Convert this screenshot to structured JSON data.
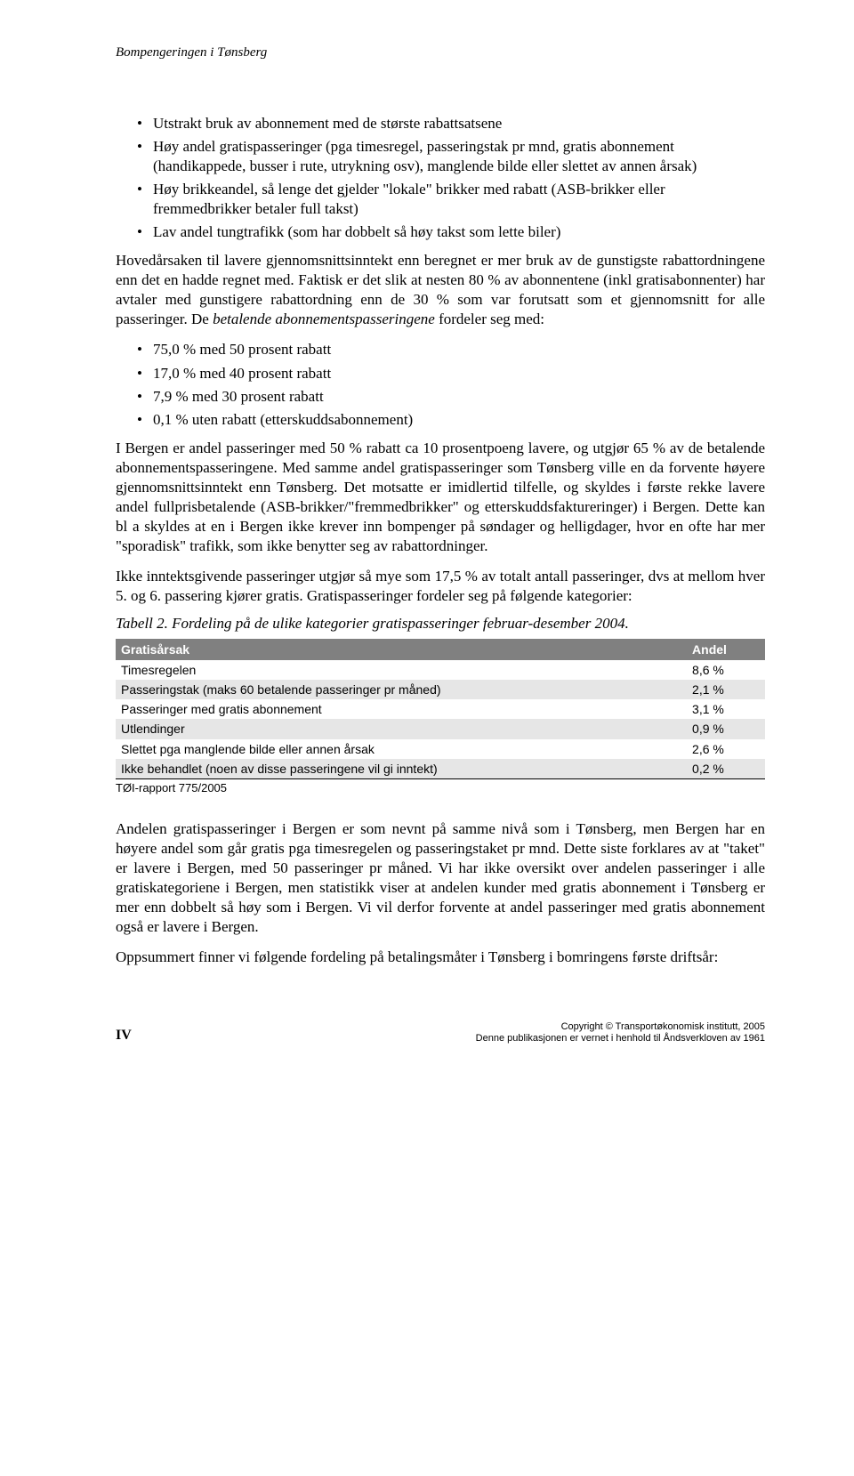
{
  "header": {
    "title": "Bompengeringen i Tønsberg"
  },
  "bullets1": {
    "items": [
      "Utstrakt bruk av abonnement med de største rabattsatsene",
      "Høy andel gratispasseringer (pga timesregel, passeringstak pr mnd, gratis abonnement (handikappede, busser i rute, utrykning osv), manglende bilde eller slettet av annen årsak)",
      "Høy brikkeandel, så lenge det gjelder \"lokale\" brikker med rabatt (ASB-brikker eller fremmedbrikker betaler full takst)",
      "Lav andel tungtrafikk (som har dobbelt så høy takst som lette biler)"
    ]
  },
  "paragraphs": {
    "p1": "Hovedårsaken til lavere gjennomsnittsinntekt enn beregnet er mer bruk av de gunstigste rabattordningene enn det en hadde regnet med. Faktisk er det slik at nesten 80 % av abonnentene (inkl gratisabonnenter) har avtaler med gunstigere rabattordning enn de 30 % som var forutsatt som et gjennomsnitt for alle passeringer. De betalende abonnementspasseringene fordeler seg med:",
    "p2": "I Bergen er andel passeringer med 50 % rabatt ca 10 prosentpoeng lavere, og utgjør 65 % av de betalende abonnementspasseringene. Med samme andel gratispasseringer som Tønsberg ville en da forvente høyere gjennomsnittsinntekt enn Tønsberg. Det motsatte er imidlertid tilfelle, og skyldes i første rekke lavere andel fullprisbetalende (ASB-brikker/\"fremmedbrikker\" og etterskuddsfaktureringer) i Bergen. Dette kan bl a skyldes at en i Bergen ikke krever inn bompenger på søndager og helligdager, hvor en ofte har mer \"sporadisk\" trafikk, som ikke benytter seg av rabattordninger.",
    "p3": "Ikke inntektsgivende passeringer utgjør så mye som 17,5 % av totalt antall passeringer, dvs at mellom hver 5. og 6. passering kjører gratis. Gratispasseringer fordeler seg på følgende kategorier:",
    "p4": "Andelen gratispasseringer i Bergen er som nevnt på samme nivå som i Tønsberg, men Bergen har en høyere andel som går gratis pga timesregelen og passeringstaket pr mnd. Dette siste forklares av at \"taket\" er lavere i Bergen, med 50 passeringer pr måned. Vi har ikke oversikt over andelen passeringer i alle gratiskategoriene i Bergen, men statistikk viser at andelen kunder med gratis abonnement i Tønsberg er mer enn dobbelt så høy som i Bergen. Vi vil derfor forvente at andel passeringer med gratis abonnement også er lavere i Bergen.",
    "p5": "Oppsummert finner vi følgende fordeling på betalingsmåter i Tønsberg i bomringens første driftsår:"
  },
  "bullets2": {
    "items": [
      "75,0 % med 50 prosent rabatt",
      "17,0 % med 40 prosent rabatt",
      "7,9 % med 30 prosent rabatt",
      "0,1 % uten rabatt (etterskuddsabonnement)"
    ]
  },
  "table": {
    "caption": "Tabell 2. Fordeling på de ulike kategorier gratispasseringer februar-desember 2004.",
    "columns": [
      "Gratisårsak",
      "Andel"
    ],
    "rows": [
      {
        "label": "Timesregelen",
        "value": "8,6 %",
        "shade": false
      },
      {
        "label": "Passeringstak (maks 60 betalende passeringer pr måned)",
        "value": "2,1 %",
        "shade": true
      },
      {
        "label": "Passeringer med gratis abonnement",
        "value": "3,1 %",
        "shade": false
      },
      {
        "label": "Utlendinger",
        "value": "0,9 %",
        "shade": true
      },
      {
        "label": "Slettet pga manglende bilde eller annen årsak",
        "value": "2,6 %",
        "shade": false
      },
      {
        "label": "Ikke behandlet (noen av disse passeringene vil gi inntekt)",
        "value": "0,2 %",
        "shade": true
      }
    ],
    "source": "TØI-rapport 775/2005"
  },
  "footer": {
    "page": "IV",
    "copyright": "Copyright © Transportøkonomisk institutt, 2005",
    "notice": "Denne publikasjonen er vernet i henhold til Åndsverkloven av 1961"
  },
  "style": {
    "body_bg": "#ffffff",
    "text_color": "#000000",
    "header_bg": "#808080",
    "header_fg": "#ffffff",
    "shade_bg": "#e6e6e6",
    "body_font": "Times New Roman",
    "table_font": "Arial",
    "body_fontsize": 17,
    "table_fontsize": 14
  }
}
